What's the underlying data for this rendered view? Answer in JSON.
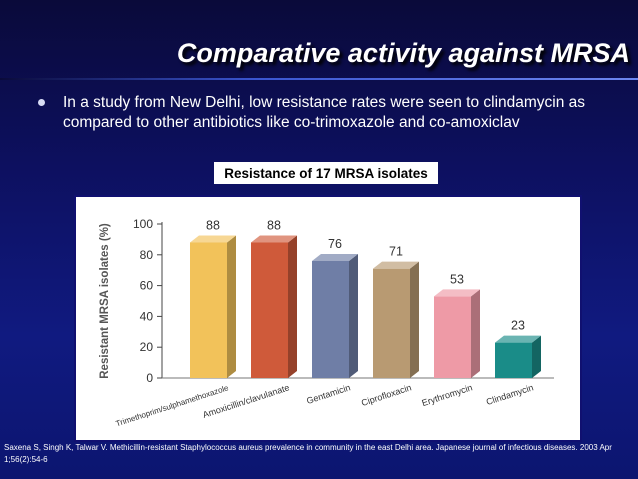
{
  "slide": {
    "title": "Comparative activity against MRSA",
    "bullet": "In a study from New Delhi, low resistance rates were seen to clindamycin as compared to other antibiotics like co-trimoxazole and co-amoxiclav",
    "caption": "Resistance of 17 MRSA isolates",
    "footnote": "Saxena S, Singh K, Talwar V. Methicillin-resistant Staphylococcus aureus prevalence in community in the east Delhi area. Japanese journal of infectious diseases. 2003 Apr 1;56(2):54-6"
  },
  "chart_data": {
    "type": "bar",
    "title": "Resistance of 17 MRSA isolates",
    "xlabel": "",
    "ylabel": "Resistant MRSA isolates (%)",
    "ylim": [
      0,
      100
    ],
    "yticks": [
      0,
      20,
      40,
      60,
      80,
      100
    ],
    "categories": [
      "Trimethoprim/sulphamethoxazole",
      "Amoxicillin/clavulanate",
      "Gentamicin",
      "Ciprofloxacin",
      "Erythromycin",
      "Clindamycin"
    ],
    "values": [
      88,
      88,
      76,
      71,
      53,
      23
    ],
    "colors": [
      "#f2c25a",
      "#cf5a3a",
      "#6f7ea6",
      "#b89a72",
      "#ee9aa6",
      "#1a8c88"
    ],
    "grid": false
  }
}
